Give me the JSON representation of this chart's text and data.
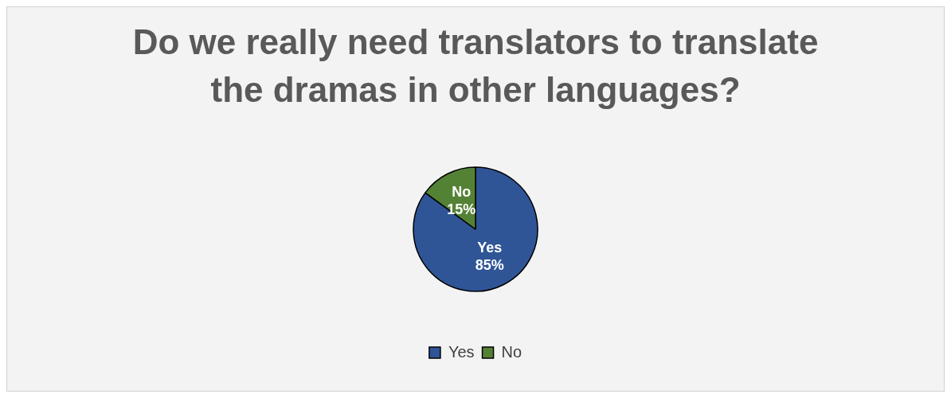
{
  "chart_data": {
    "type": "pie",
    "title": "Do we really need translators to translate the dramas in other languages?",
    "categories": [
      "Yes",
      "No"
    ],
    "values": [
      85,
      15
    ],
    "colors": [
      "#2f5597",
      "#548235"
    ],
    "value_labels": [
      "85%",
      "15%"
    ],
    "legend": "bottom"
  }
}
